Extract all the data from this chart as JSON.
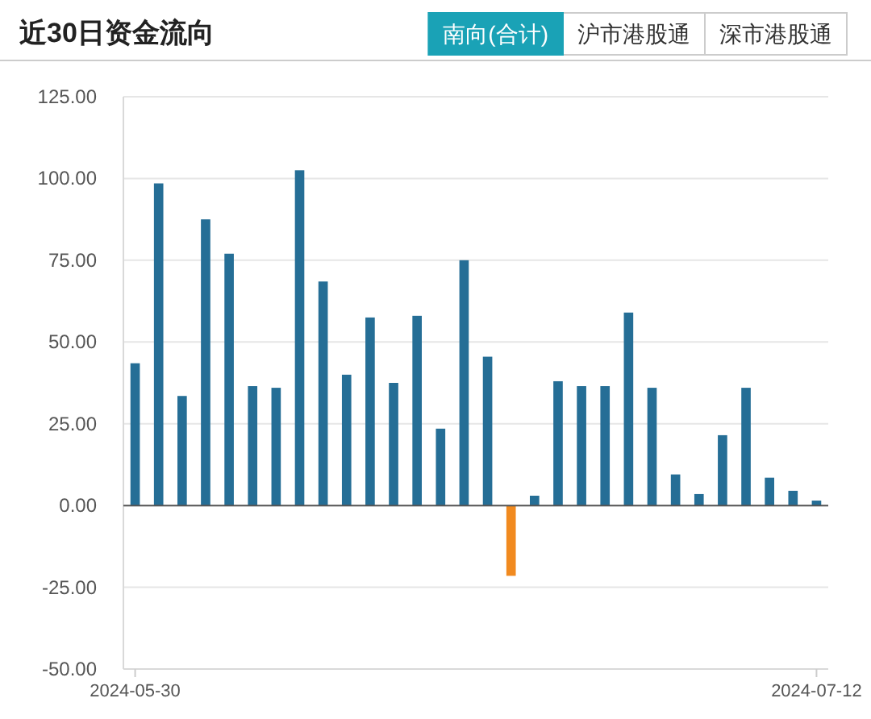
{
  "chart_data": {
    "type": "bar",
    "title": "近30日资金流向",
    "annotations": [
      "南向(合计)",
      "沪市港股通",
      "深市港股通"
    ],
    "categories": [
      "2024-05-30",
      null,
      null,
      null,
      null,
      null,
      null,
      null,
      null,
      null,
      null,
      null,
      null,
      null,
      null,
      null,
      null,
      null,
      null,
      null,
      null,
      null,
      null,
      null,
      null,
      null,
      null,
      null,
      null,
      "2024-07-12"
    ],
    "values": [
      43.5,
      98.5,
      33.5,
      87.5,
      77,
      36.5,
      36,
      102.5,
      68.5,
      40,
      57.5,
      37.5,
      58,
      23.5,
      75,
      45.5,
      -21.5,
      3,
      38,
      36.5,
      36.5,
      59,
      36,
      9.5,
      3.5,
      21.5,
      36,
      8.5,
      4.5,
      1.5
    ],
    "colors": [
      "#256e96",
      "#256e96",
      "#256e96",
      "#256e96",
      "#256e96",
      "#256e96",
      "#256e96",
      "#256e96",
      "#256e96",
      "#256e96",
      "#256e96",
      "#256e96",
      "#256e96",
      "#256e96",
      "#256e96",
      "#256e96",
      "#f18a1f",
      "#256e96",
      "#256e96",
      "#256e96",
      "#256e96",
      "#256e96",
      "#256e96",
      "#256e96",
      "#256e96",
      "#256e96",
      "#256e96",
      "#256e96",
      "#256e96",
      "#256e96"
    ],
    "ylim": [
      -50,
      125
    ],
    "yticks": [
      {
        "value": -50,
        "label": "-50.00"
      },
      {
        "value": -25,
        "label": "-25.00"
      },
      {
        "value": 0,
        "label": "0.00"
      },
      {
        "value": 25,
        "label": "25.00"
      },
      {
        "value": 50,
        "label": "50.00"
      },
      {
        "value": 75,
        "label": "75.00"
      },
      {
        "value": 100,
        "label": "100.00"
      },
      {
        "value": 125,
        "label": "125.00"
      }
    ],
    "grid": "y"
  }
}
